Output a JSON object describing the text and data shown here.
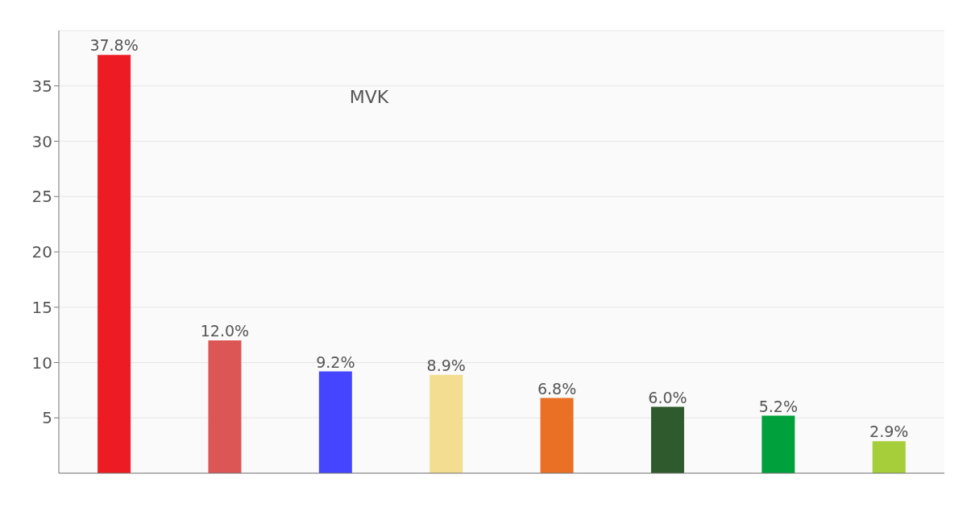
{
  "chart_data": {
    "type": "bar",
    "categories": [
      null,
      null,
      null,
      null,
      null,
      null,
      null,
      null
    ],
    "values": [
      37.8,
      12.0,
      9.2,
      8.9,
      6.8,
      6.0,
      5.2,
      2.9
    ],
    "colors": [
      "#ed1c24",
      "#dc5656",
      "#4545ff",
      "#f2dd91",
      "#ea7025",
      "#2f5a2d",
      "#00a03c",
      "#a6cd3a"
    ],
    "value_labels": [
      "37.8%",
      "12.0%",
      "9.2%",
      "8.9%",
      "6.8%",
      "6.0%",
      "5.2%",
      "2.9%"
    ],
    "ylim": [
      0,
      40
    ],
    "yticks": [
      5,
      10,
      15,
      20,
      25,
      30,
      35
    ],
    "grid": "y",
    "annotations": [
      "MVK"
    ]
  }
}
